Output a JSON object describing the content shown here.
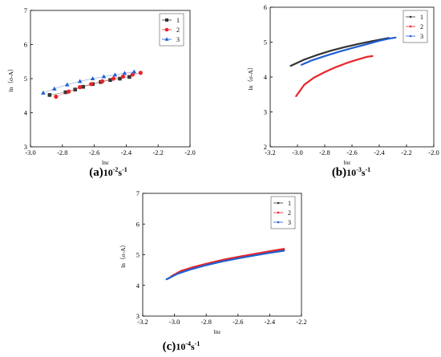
{
  "chart_data": [
    {
      "id": "a",
      "type": "scatter",
      "caption_prefix": "(a)",
      "caption_rate": "10",
      "caption_exp": "-2",
      "caption_unit_s": "s",
      "caption_unit_exp": "-1",
      "xlabel": "lnε",
      "ylabel": "ln（σ-A）",
      "xlim": [
        -3.0,
        -2.0
      ],
      "ylim": [
        3,
        7
      ],
      "xticks": [
        "-3.0",
        "-2.8",
        "-2.6",
        "-2.4",
        "-2.2",
        "-2.0"
      ],
      "xtick_values": [
        -3.0,
        -2.8,
        -2.6,
        -2.4,
        -2.2,
        -2.0
      ],
      "yticks": [
        "3",
        "4",
        "5",
        "6",
        "7"
      ],
      "ytick_values": [
        3,
        4,
        5,
        6,
        7
      ],
      "legend_position": "top-right",
      "series": [
        {
          "name": "1",
          "color": "#333333",
          "marker": "square",
          "x": [
            -2.88,
            -2.78,
            -2.72,
            -2.67,
            -2.61,
            -2.56,
            -2.5,
            -2.44,
            -2.38
          ],
          "y": [
            4.52,
            4.6,
            4.68,
            4.76,
            4.84,
            4.9,
            4.96,
            5.0,
            5.05
          ]
        },
        {
          "name": "2",
          "color": "#e8252a",
          "marker": "circle",
          "x": [
            -2.84,
            -2.76,
            -2.69,
            -2.62,
            -2.55,
            -2.48,
            -2.42,
            -2.36,
            -2.31
          ],
          "y": [
            4.47,
            4.62,
            4.75,
            4.84,
            4.92,
            5.0,
            5.06,
            5.12,
            5.17
          ]
        },
        {
          "name": "3",
          "color": "#1f5fd1",
          "marker": "triangle",
          "x": [
            -2.92,
            -2.85,
            -2.77,
            -2.69,
            -2.61,
            -2.54,
            -2.47,
            -2.41,
            -2.35
          ],
          "y": [
            4.58,
            4.7,
            4.82,
            4.92,
            5.0,
            5.06,
            5.11,
            5.16,
            5.2
          ]
        }
      ]
    },
    {
      "id": "b",
      "type": "line",
      "caption_prefix": "(b)",
      "caption_rate": "10",
      "caption_exp": "-3",
      "caption_unit_s": "s",
      "caption_unit_exp": "-1",
      "xlabel": "lnε",
      "ylabel": "ln（σ-A）",
      "xlim": [
        -3.2,
        -2.0
      ],
      "ylim": [
        2,
        6
      ],
      "xticks": [
        "-3.2",
        "-3.0",
        "-2.8",
        "-2.6",
        "-2.4",
        "-2.2",
        "-2.0"
      ],
      "xtick_values": [
        -3.2,
        -3.0,
        -2.8,
        -2.6,
        -2.4,
        -2.2,
        -2.0
      ],
      "yticks": [
        "2",
        "3",
        "4",
        "5",
        "6"
      ],
      "ytick_values": [
        2,
        3,
        4,
        5,
        6
      ],
      "legend_position": "top-right",
      "series": [
        {
          "name": "1",
          "color": "#333333",
          "x": [
            -3.05,
            -2.95,
            -2.85,
            -2.75,
            -2.65,
            -2.55,
            -2.45,
            -2.38,
            -2.33
          ],
          "y": [
            4.32,
            4.5,
            4.64,
            4.76,
            4.86,
            4.95,
            5.03,
            5.08,
            5.12
          ]
        },
        {
          "name": "2",
          "color": "#e8252a",
          "x": [
            -3.01,
            -2.95,
            -2.88,
            -2.8,
            -2.72,
            -2.64,
            -2.56,
            -2.49,
            -2.45
          ],
          "y": [
            3.45,
            3.78,
            3.98,
            4.14,
            4.28,
            4.4,
            4.5,
            4.58,
            4.6
          ]
        },
        {
          "name": "3",
          "color": "#1f5fd1",
          "x": [
            -2.97,
            -2.9,
            -2.8,
            -2.7,
            -2.6,
            -2.5,
            -2.4,
            -2.33,
            -2.28
          ],
          "y": [
            4.35,
            4.47,
            4.6,
            4.72,
            4.83,
            4.93,
            5.04,
            5.1,
            5.13
          ]
        }
      ]
    },
    {
      "id": "c",
      "type": "line",
      "caption_prefix": "(c)",
      "caption_rate": "10",
      "caption_exp": "-4",
      "caption_unit_s": "s",
      "caption_unit_exp": "-1",
      "xlabel": "lnε",
      "ylabel": "ln（σ-A）",
      "xlim": [
        -3.2,
        -2.2
      ],
      "ylim": [
        3,
        7
      ],
      "xticks": [
        "-3.2",
        "-3.0",
        "-2.8",
        "-2.6",
        "-2.4",
        "-2.2"
      ],
      "xtick_values": [
        -3.2,
        -3.0,
        -2.8,
        -2.6,
        -2.4,
        -2.2
      ],
      "yticks": [
        "3",
        "4",
        "5",
        "6",
        "7"
      ],
      "ytick_values": [
        3,
        4,
        5,
        6,
        7
      ],
      "legend_position": "top-right",
      "series": [
        {
          "name": "1",
          "color": "#333333",
          "x": [
            -3.04,
            -2.98,
            -2.9,
            -2.8,
            -2.7,
            -2.6,
            -2.5,
            -2.4,
            -2.31
          ],
          "y": [
            4.22,
            4.4,
            4.55,
            4.68,
            4.8,
            4.9,
            4.99,
            5.08,
            5.15
          ]
        },
        {
          "name": "2",
          "color": "#e8252a",
          "x": [
            -3.02,
            -2.96,
            -2.88,
            -2.78,
            -2.68,
            -2.58,
            -2.48,
            -2.38,
            -2.31
          ],
          "y": [
            4.3,
            4.47,
            4.6,
            4.73,
            4.85,
            4.95,
            5.04,
            5.13,
            5.19
          ]
        },
        {
          "name": "3",
          "color": "#1f5fd1",
          "x": [
            -3.05,
            -2.98,
            -2.9,
            -2.8,
            -2.7,
            -2.6,
            -2.5,
            -2.4,
            -2.31
          ],
          "y": [
            4.2,
            4.38,
            4.52,
            4.66,
            4.78,
            4.88,
            4.97,
            5.06,
            5.13
          ]
        }
      ]
    }
  ]
}
